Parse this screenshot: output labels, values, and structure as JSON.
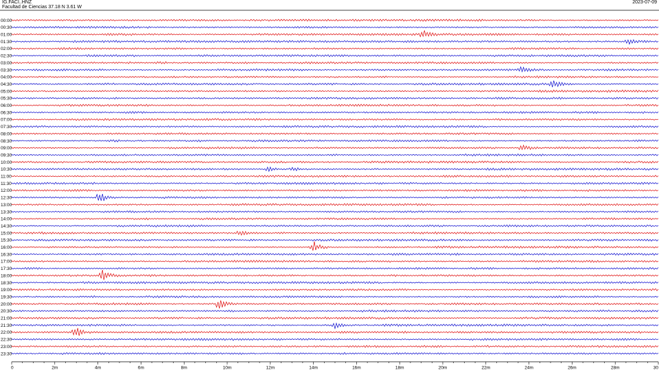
{
  "header": {
    "station": "IG.FACI..HNZ",
    "location": "Facultad de Ciencias  37.18 N 3.61 W",
    "date": "2023-07-09"
  },
  "chart_data": {
    "type": "line",
    "title": "IG.FACI..HNZ",
    "subtitle": "Facultad de Ciencias  37.18 N 3.61 W",
    "date": "2023-07-09",
    "xlabel": "",
    "ylabel": "",
    "xlim": [
      0,
      30
    ],
    "x_unit": "minutes",
    "x_ticks": [
      "0",
      "2m",
      "4m",
      "6m",
      "8m",
      "10m",
      "12m",
      "14m",
      "16m",
      "18m",
      "20m",
      "22m",
      "24m",
      "26m",
      "28m",
      "30"
    ],
    "rows": [
      "00:00",
      "00:30",
      "01:00",
      "01:30",
      "02:00",
      "02:30",
      "03:00",
      "03:30",
      "04:00",
      "04:30",
      "05:00",
      "05:30",
      "06:00",
      "06:30",
      "07:00",
      "07:30",
      "08:00",
      "08:30",
      "09:00",
      "09:30",
      "10:00",
      "10:30",
      "11:00",
      "11:30",
      "12:00",
      "12:30",
      "13:00",
      "13:30",
      "14:00",
      "14:30",
      "15:00",
      "15:30",
      "16:00",
      "16:30",
      "17:00",
      "17:30",
      "18:00",
      "18:30",
      "19:00",
      "19:30",
      "20:00",
      "20:30",
      "21:00",
      "21:30",
      "22:00",
      "22:30",
      "23:00",
      "23:30"
    ],
    "colors": [
      "#dd0000",
      "#0000cc"
    ],
    "grid": false,
    "legend": "none",
    "events": [
      {
        "row": "01:00",
        "minute": 19.1,
        "amplitude": 0.6
      },
      {
        "row": "01:30",
        "minute": 28.6,
        "amplitude": 0.35
      },
      {
        "row": "03:30",
        "minute": 23.6,
        "amplitude": 0.5
      },
      {
        "row": "04:30",
        "minute": 25.1,
        "amplitude": 0.8
      },
      {
        "row": "09:00",
        "minute": 23.7,
        "amplitude": 0.55
      },
      {
        "row": "10:30",
        "minute": 11.9,
        "amplitude": 0.5
      },
      {
        "row": "10:30",
        "minute": 13.0,
        "amplitude": 0.45
      },
      {
        "row": "12:30",
        "minute": 4.1,
        "amplitude": 0.85
      },
      {
        "row": "15:00",
        "minute": 10.6,
        "amplitude": 0.45
      },
      {
        "row": "16:00",
        "minute": 14.0,
        "amplitude": 1.0
      },
      {
        "row": "18:00",
        "minute": 4.2,
        "amplitude": 0.8
      },
      {
        "row": "20:00",
        "minute": 9.6,
        "amplitude": 0.95
      },
      {
        "row": "21:30",
        "minute": 15.0,
        "amplitude": 0.45
      },
      {
        "row": "22:00",
        "minute": 2.9,
        "amplitude": 1.1
      }
    ]
  }
}
